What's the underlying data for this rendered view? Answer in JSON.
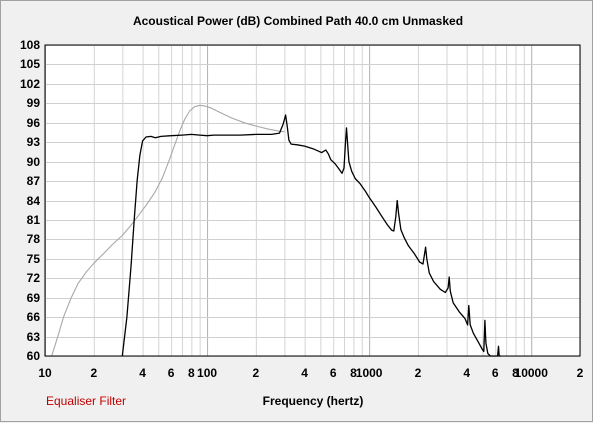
{
  "chart_data": {
    "type": "line",
    "title": "Acoustical Power (dB)   Combined   Path 40.0 cm   Unmasked",
    "xlabel": "Frequency (hertz)",
    "ylabel": "",
    "xscale": "log",
    "xlim": [
      10,
      20000
    ],
    "ylim": [
      60,
      108
    ],
    "grid": true,
    "y_ticks": [
      60,
      63,
      66,
      69,
      72,
      75,
      78,
      81,
      84,
      87,
      90,
      93,
      96,
      99,
      102,
      105,
      108
    ],
    "x_ticks": [
      {
        "value": 10,
        "label": "10"
      },
      {
        "value": 20,
        "label": "2"
      },
      {
        "value": 40,
        "label": "4"
      },
      {
        "value": 60,
        "label": "6"
      },
      {
        "value": 80,
        "label": "8"
      },
      {
        "value": 100,
        "label": "100"
      },
      {
        "value": 200,
        "label": "2"
      },
      {
        "value": 400,
        "label": "4"
      },
      {
        "value": 600,
        "label": "6"
      },
      {
        "value": 800,
        "label": "8"
      },
      {
        "value": 1000,
        "label": "1000"
      },
      {
        "value": 2000,
        "label": "2"
      },
      {
        "value": 4000,
        "label": "4"
      },
      {
        "value": 6000,
        "label": "6"
      },
      {
        "value": 8000,
        "label": "8"
      },
      {
        "value": 10000,
        "label": "10000"
      },
      {
        "value": 20000,
        "label": "2"
      }
    ],
    "series": [
      {
        "color": "#000000",
        "points": [
          [
            30,
            60
          ],
          [
            32,
            66
          ],
          [
            34,
            74
          ],
          [
            35.5,
            81
          ],
          [
            37,
            87
          ],
          [
            38.5,
            91
          ],
          [
            40,
            93.2
          ],
          [
            42,
            93.8
          ],
          [
            45,
            93.9
          ],
          [
            48,
            93.7
          ],
          [
            52,
            93.9
          ],
          [
            60,
            94
          ],
          [
            70,
            94.1
          ],
          [
            80,
            94.2
          ],
          [
            90,
            94.1
          ],
          [
            100,
            94.0
          ],
          [
            110,
            94.1
          ],
          [
            130,
            94.1
          ],
          [
            160,
            94.1
          ],
          [
            200,
            94.2
          ],
          [
            250,
            94.2
          ],
          [
            280,
            94.4
          ],
          [
            295,
            95.8
          ],
          [
            305,
            97.2
          ],
          [
            312,
            95.5
          ],
          [
            320,
            93.3
          ],
          [
            330,
            92.7
          ],
          [
            360,
            92.6
          ],
          [
            400,
            92.4
          ],
          [
            450,
            92.0
          ],
          [
            490,
            91.6
          ],
          [
            510,
            91.4
          ],
          [
            540,
            91.8
          ],
          [
            560,
            91.2
          ],
          [
            580,
            90.3
          ],
          [
            620,
            89.6
          ],
          [
            650,
            88.9
          ],
          [
            680,
            88.2
          ],
          [
            700,
            89
          ],
          [
            715,
            93
          ],
          [
            725,
            95.2
          ],
          [
            735,
            93
          ],
          [
            750,
            90
          ],
          [
            780,
            88.5
          ],
          [
            820,
            87.4
          ],
          [
            880,
            86.6
          ],
          [
            950,
            85.4
          ],
          [
            1000,
            84.5
          ],
          [
            1100,
            83.0
          ],
          [
            1200,
            81.5
          ],
          [
            1300,
            80.2
          ],
          [
            1380,
            79.4
          ],
          [
            1420,
            79.3
          ],
          [
            1460,
            81.5
          ],
          [
            1490,
            84.0
          ],
          [
            1520,
            82.0
          ],
          [
            1570,
            79.5
          ],
          [
            1650,
            78.2
          ],
          [
            1750,
            77.0
          ],
          [
            1900,
            75.8
          ],
          [
            2050,
            74.5
          ],
          [
            2150,
            74.2
          ],
          [
            2230,
            76.8
          ],
          [
            2270,
            75.0
          ],
          [
            2350,
            72.8
          ],
          [
            2500,
            71.5
          ],
          [
            2750,
            70.3
          ],
          [
            2950,
            69.8
          ],
          [
            3070,
            70.5
          ],
          [
            3120,
            72.2
          ],
          [
            3170,
            70.0
          ],
          [
            3300,
            68.2
          ],
          [
            3600,
            66.8
          ],
          [
            3900,
            65.8
          ],
          [
            4050,
            64.8
          ],
          [
            4120,
            67.8
          ],
          [
            4200,
            64.8
          ],
          [
            4400,
            63.5
          ],
          [
            4700,
            62.2
          ],
          [
            5000,
            61.0
          ],
          [
            5100,
            60.7
          ],
          [
            5180,
            65.5
          ],
          [
            5250,
            62
          ],
          [
            5400,
            60.4
          ],
          [
            5600,
            60.0
          ],
          [
            6200,
            60.0
          ],
          [
            6280,
            61.5
          ],
          [
            6350,
            60.0
          ],
          [
            6500,
            60.0
          ]
        ]
      },
      {
        "color": "#a8a8a8",
        "points": [
          [
            11,
            60
          ],
          [
            12,
            63
          ],
          [
            13,
            66
          ],
          [
            14.5,
            69
          ],
          [
            16,
            71.2
          ],
          [
            18,
            73
          ],
          [
            20,
            74.3
          ],
          [
            23,
            75.8
          ],
          [
            26,
            77.2
          ],
          [
            30,
            78.6
          ],
          [
            34,
            80.2
          ],
          [
            38,
            81.8
          ],
          [
            43,
            83.6
          ],
          [
            48,
            85.4
          ],
          [
            53,
            87.5
          ],
          [
            58,
            90.0
          ],
          [
            63,
            92.5
          ],
          [
            68,
            94.8
          ],
          [
            73,
            96.6
          ],
          [
            78,
            97.8
          ],
          [
            84,
            98.5
          ],
          [
            90,
            98.7
          ],
          [
            96,
            98.6
          ],
          [
            105,
            98.3
          ],
          [
            120,
            97.6
          ],
          [
            140,
            96.8
          ],
          [
            170,
            96.0
          ],
          [
            200,
            95.5
          ],
          [
            240,
            95.0
          ],
          [
            280,
            94.7
          ],
          [
            300,
            94.6
          ]
        ]
      }
    ]
  },
  "footer": {
    "filter_label": "Equaliser Filter"
  }
}
